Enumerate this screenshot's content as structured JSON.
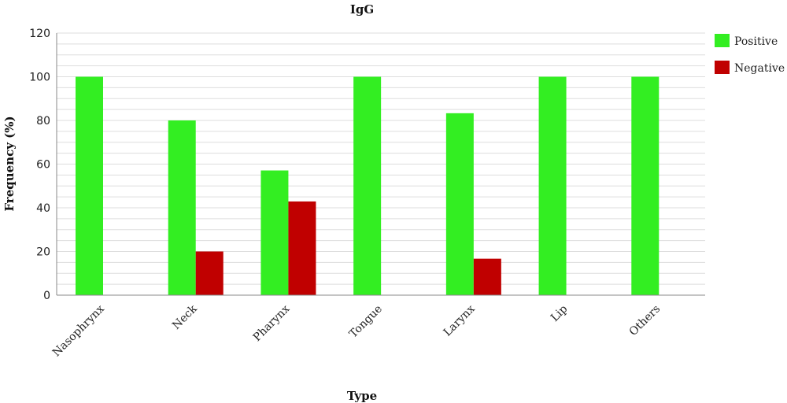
{
  "chart_data": {
    "type": "bar",
    "title": "IgG",
    "xlabel": "Type",
    "ylabel": "Frequency (%)",
    "ylim": [
      0,
      120
    ],
    "yticks": [
      0,
      20,
      40,
      60,
      80,
      100,
      120
    ],
    "grid": true,
    "legend_position": "right",
    "categories": [
      "Nasophrynx",
      "Neck",
      "Pharynx",
      "Tongue",
      "Larynx",
      "Lip",
      "Others"
    ],
    "series": [
      {
        "name": "Positive",
        "color": "#33ee22",
        "values": [
          100,
          80,
          57.1,
          100,
          83.3,
          100,
          100
        ]
      },
      {
        "name": "Negative",
        "color": "#c00000",
        "values": [
          0,
          20,
          42.9,
          0,
          16.7,
          0,
          0
        ]
      }
    ]
  }
}
